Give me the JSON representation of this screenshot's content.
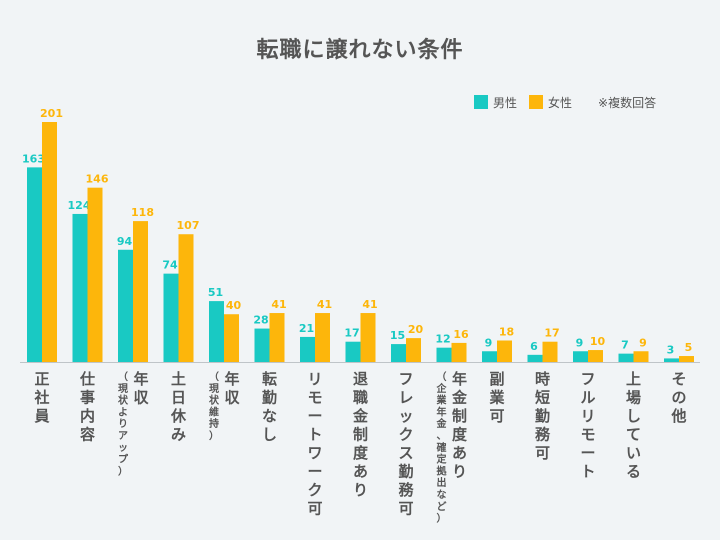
{
  "chart_data": {
    "type": "bar",
    "title": "転職に譲れない条件",
    "note": "※複数回答",
    "colors": {
      "male": "#19c9c3",
      "female": "#fdb60b",
      "axis": "#bfc4c8"
    },
    "categories": [
      {
        "label": "正社員",
        "sub": ""
      },
      {
        "label": "仕事内容",
        "sub": ""
      },
      {
        "label": "年収",
        "sub": "（現状よりアップ）"
      },
      {
        "label": "土日休み",
        "sub": ""
      },
      {
        "label": "年収",
        "sub": "（現状維持）"
      },
      {
        "label": "転勤なし",
        "sub": ""
      },
      {
        "label": "リモートワーク可",
        "sub": ""
      },
      {
        "label": "退職金制度あり",
        "sub": ""
      },
      {
        "label": "フレックス勤務可",
        "sub": ""
      },
      {
        "label": "年金制度あり",
        "sub": "（企業年金、確定拠出など）"
      },
      {
        "label": "副業可",
        "sub": ""
      },
      {
        "label": "時短勤務可",
        "sub": ""
      },
      {
        "label": "フルリモート",
        "sub": ""
      },
      {
        "label": "上場している",
        "sub": ""
      },
      {
        "label": "その他",
        "sub": ""
      }
    ],
    "series": [
      {
        "name": "男性",
        "values": [
          163,
          124,
          94,
          74,
          51,
          28,
          21,
          17,
          15,
          12,
          9,
          6,
          9,
          7,
          3
        ]
      },
      {
        "name": "女性",
        "values": [
          201,
          146,
          118,
          107,
          40,
          41,
          41,
          41,
          20,
          16,
          18,
          17,
          10,
          9,
          5
        ]
      }
    ],
    "ylim": [
      0,
      201
    ]
  }
}
